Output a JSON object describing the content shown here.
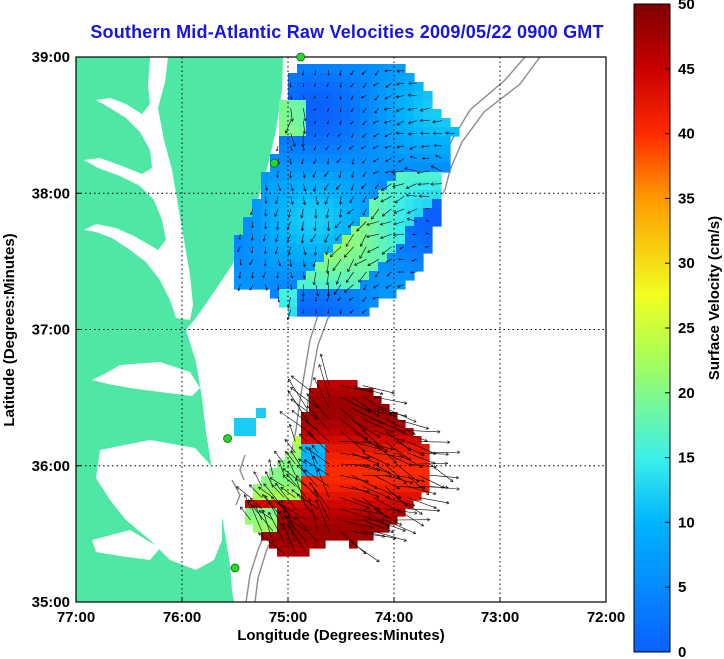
{
  "title": "Southern Mid-Atlantic Raw Velocities 2009/05/22 0900 GMT",
  "xlabel": "Longitude (Degrees:Minutes)",
  "ylabel": "Latitude (Degrees:Minutes)",
  "colorbar": {
    "label": "Surface Velocity (cm/s)",
    "ticks": [
      "0",
      "5",
      "10",
      "15",
      "20",
      "25",
      "30",
      "35",
      "40",
      "45",
      "50"
    ],
    "range": [
      0,
      50
    ]
  },
  "x_ticks": [
    "77:00",
    "76:00",
    "75:00",
    "74:00",
    "73:00",
    "72:00"
  ],
  "y_ticks": [
    "39:00",
    "38:00",
    "37:00",
    "36:00",
    "35:00"
  ],
  "colors": {
    "land": "#4fe7a4",
    "ocean": "#ffffff",
    "title": "#1515e6",
    "station": "#2ad62a",
    "isobath": "#8c8c8c"
  },
  "map": {
    "lon_range": [
      -77,
      -72
    ],
    "lat_range": [
      35,
      39
    ],
    "grid": true,
    "stations": [
      {
        "lon": -74.88,
        "lat": 39.0
      },
      {
        "lon": -75.13,
        "lat": 38.22
      },
      {
        "lon": -75.57,
        "lat": 36.2
      },
      {
        "lon": -75.5,
        "lat": 35.25
      }
    ],
    "velocity_regions": [
      {
        "name": "north",
        "speed_range_cm_s": [
          0,
          30
        ]
      },
      {
        "name": "south",
        "speed_range_cm_s": [
          10,
          50
        ]
      }
    ]
  }
}
